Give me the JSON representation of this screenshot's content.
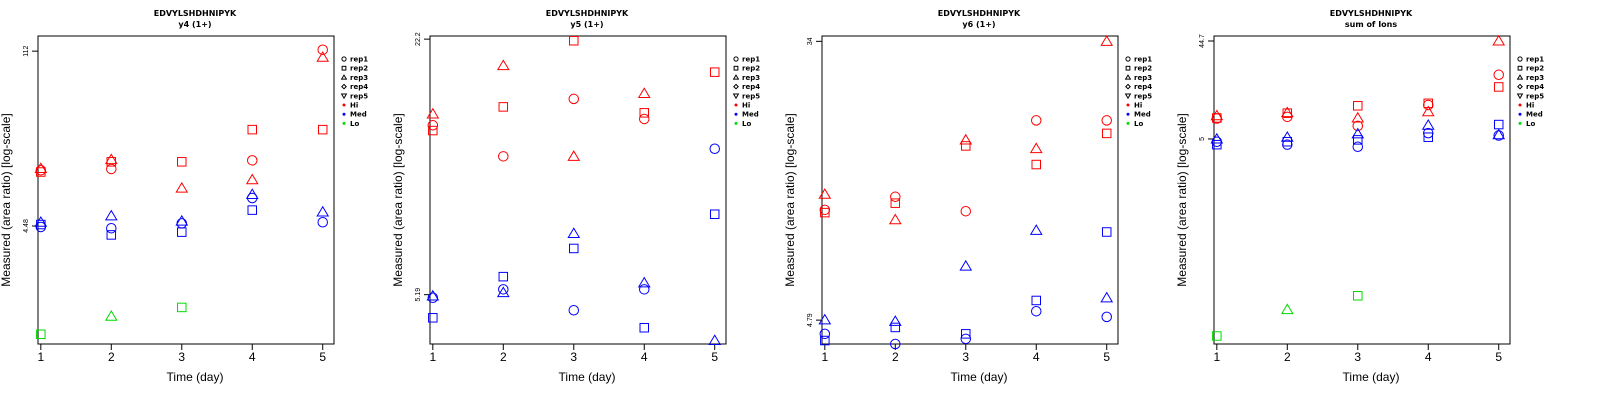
{
  "colors": {
    "Hi": "#ff0000",
    "Med": "#0000ff",
    "Lo": "#00dd00"
  },
  "legend": {
    "shapes": [
      {
        "label": "rep1",
        "shape": "circle"
      },
      {
        "label": "rep2",
        "shape": "square"
      },
      {
        "label": "rep3",
        "shape": "triangle"
      },
      {
        "label": "rep4",
        "shape": "diamond"
      },
      {
        "label": "rep5",
        "shape": "triangle-down"
      }
    ],
    "levels": [
      {
        "label": "Hi",
        "color": "#ff0000"
      },
      {
        "label": "Med",
        "color": "#0000ff"
      },
      {
        "label": "Lo",
        "color": "#00dd00"
      }
    ]
  },
  "chart_data": [
    {
      "type": "scatter",
      "title": "EDVYLSHDHNIPYK",
      "subtitle": "y4 (1+)",
      "xlabel": "Time (day)",
      "ylabel": "Measured (area ratio) [log-scale]",
      "y_scale": "log",
      "x_ticks": [
        1,
        2,
        3,
        4,
        5
      ],
      "xlim": [
        0.96,
        5.16
      ],
      "ylim": [
        0.51,
        148
      ],
      "y_ticks": [
        4.48,
        112
      ],
      "y_tick_labels": [
        "4.48",
        "112"
      ],
      "points": [
        {
          "series": "Hi",
          "rep": "rep1",
          "x": 1,
          "y": 12.5
        },
        {
          "series": "Hi",
          "rep": "rep2",
          "x": 1,
          "y": 12.1
        },
        {
          "series": "Hi",
          "rep": "rep3",
          "x": 1,
          "y": 12.9
        },
        {
          "series": "Hi",
          "rep": "rep1",
          "x": 2,
          "y": 12.8
        },
        {
          "series": "Hi",
          "rep": "rep2",
          "x": 2,
          "y": 14.6
        },
        {
          "series": "Hi",
          "rep": "rep3",
          "x": 2,
          "y": 15.2
        },
        {
          "series": "Hi",
          "rep": "rep2",
          "x": 3,
          "y": 14.6
        },
        {
          "series": "Hi",
          "rep": "rep3",
          "x": 3,
          "y": 9.0
        },
        {
          "series": "Hi",
          "rep": "rep1",
          "x": 4,
          "y": 15.0
        },
        {
          "series": "Hi",
          "rep": "rep2",
          "x": 4,
          "y": 26.4
        },
        {
          "series": "Hi",
          "rep": "rep3",
          "x": 4,
          "y": 10.5
        },
        {
          "series": "Hi",
          "rep": "rep1",
          "x": 5,
          "y": 115
        },
        {
          "series": "Hi",
          "rep": "rep2",
          "x": 5,
          "y": 26.4
        },
        {
          "series": "Hi",
          "rep": "rep3",
          "x": 5,
          "y": 100
        },
        {
          "series": "Med",
          "rep": "rep1",
          "x": 1,
          "y": 4.4
        },
        {
          "series": "Med",
          "rep": "rep2",
          "x": 1,
          "y": 4.6
        },
        {
          "series": "Med",
          "rep": "rep3",
          "x": 1,
          "y": 4.8
        },
        {
          "series": "Med",
          "rep": "rep1",
          "x": 2,
          "y": 4.3
        },
        {
          "series": "Med",
          "rep": "rep2",
          "x": 2,
          "y": 3.8
        },
        {
          "series": "Med",
          "rep": "rep3",
          "x": 2,
          "y": 5.4
        },
        {
          "series": "Med",
          "rep": "rep1",
          "x": 3,
          "y": 4.7
        },
        {
          "series": "Med",
          "rep": "rep2",
          "x": 3,
          "y": 4.0
        },
        {
          "series": "Med",
          "rep": "rep3",
          "x": 3,
          "y": 4.9
        },
        {
          "series": "Med",
          "rep": "rep1",
          "x": 4,
          "y": 7.5
        },
        {
          "series": "Med",
          "rep": "rep2",
          "x": 4,
          "y": 6.0
        },
        {
          "series": "Med",
          "rep": "rep3",
          "x": 4,
          "y": 8.0
        },
        {
          "series": "Med",
          "rep": "rep1",
          "x": 5,
          "y": 4.8
        },
        {
          "series": "Med",
          "rep": "rep3",
          "x": 5,
          "y": 5.8
        },
        {
          "series": "Lo",
          "rep": "rep2",
          "x": 1,
          "y": 0.61
        },
        {
          "series": "Lo",
          "rep": "rep3",
          "x": 2,
          "y": 0.85
        },
        {
          "series": "Lo",
          "rep": "rep2",
          "x": 3,
          "y": 1.0
        }
      ]
    },
    {
      "type": "scatter",
      "title": "EDVYLSHDHNIPYK",
      "subtitle": "y5 (1+)",
      "xlabel": "Time (day)",
      "ylabel": "Measured (area ratio) [log-scale]",
      "y_scale": "log",
      "x_ticks": [
        1,
        2,
        3,
        4,
        5
      ],
      "xlim": [
        0.96,
        5.16
      ],
      "ylim": [
        3.92,
        22.6
      ],
      "y_ticks": [
        5.19,
        22.2
      ],
      "y_tick_labels": [
        "5.19",
        "22.2"
      ],
      "points": [
        {
          "series": "Hi",
          "rep": "rep1",
          "x": 1,
          "y": 13.6
        },
        {
          "series": "Hi",
          "rep": "rep2",
          "x": 1,
          "y": 13.2
        },
        {
          "series": "Hi",
          "rep": "rep3",
          "x": 1,
          "y": 14.5
        },
        {
          "series": "Hi",
          "rep": "rep1",
          "x": 2,
          "y": 11.4
        },
        {
          "series": "Hi",
          "rep": "rep2",
          "x": 2,
          "y": 15.1
        },
        {
          "series": "Hi",
          "rep": "rep3",
          "x": 2,
          "y": 19.1
        },
        {
          "series": "Hi",
          "rep": "rep1",
          "x": 3,
          "y": 15.8
        },
        {
          "series": "Hi",
          "rep": "rep2",
          "x": 3,
          "y": 22.0
        },
        {
          "series": "Hi",
          "rep": "rep3",
          "x": 3,
          "y": 11.4
        },
        {
          "series": "Hi",
          "rep": "rep1",
          "x": 4,
          "y": 14.1
        },
        {
          "series": "Hi",
          "rep": "rep2",
          "x": 4,
          "y": 14.6
        },
        {
          "series": "Hi",
          "rep": "rep3",
          "x": 4,
          "y": 16.3
        },
        {
          "series": "Hi",
          "rep": "rep2",
          "x": 5,
          "y": 18.4
        },
        {
          "series": "Med",
          "rep": "rep1",
          "x": 1,
          "y": 5.1
        },
        {
          "series": "Med",
          "rep": "rep2",
          "x": 1,
          "y": 4.55
        },
        {
          "series": "Med",
          "rep": "rep3",
          "x": 1,
          "y": 5.15
        },
        {
          "series": "Med",
          "rep": "rep1",
          "x": 2,
          "y": 5.35
        },
        {
          "series": "Med",
          "rep": "rep2",
          "x": 2,
          "y": 5.75
        },
        {
          "series": "Med",
          "rep": "rep3",
          "x": 2,
          "y": 5.25
        },
        {
          "series": "Med",
          "rep": "rep1",
          "x": 3,
          "y": 4.75
        },
        {
          "series": "Med",
          "rep": "rep2",
          "x": 3,
          "y": 6.75
        },
        {
          "series": "Med",
          "rep": "rep3",
          "x": 3,
          "y": 7.35
        },
        {
          "series": "Med",
          "rep": "rep1",
          "x": 4,
          "y": 5.35
        },
        {
          "series": "Med",
          "rep": "rep2",
          "x": 4,
          "y": 4.3
        },
        {
          "series": "Med",
          "rep": "rep3",
          "x": 4,
          "y": 5.55
        },
        {
          "series": "Med",
          "rep": "rep1",
          "x": 5,
          "y": 11.9
        },
        {
          "series": "Med",
          "rep": "rep2",
          "x": 5,
          "y": 8.2
        },
        {
          "series": "Med",
          "rep": "rep3",
          "x": 5,
          "y": 4.0
        }
      ]
    },
    {
      "type": "scatter",
      "title": "EDVYLSHDHNIPYK",
      "subtitle": "y6 (1+)",
      "xlabel": "Time (day)",
      "ylabel": "Measured (area ratio) [log-scale]",
      "y_scale": "log",
      "x_ticks": [
        1,
        2,
        3,
        4,
        5
      ],
      "xlim": [
        0.96,
        5.16
      ],
      "ylim": [
        4.05,
        35.3
      ],
      "y_ticks": [
        4.79,
        34
      ],
      "y_tick_labels": [
        "4.79",
        "34"
      ],
      "points": [
        {
          "series": "Hi",
          "rep": "rep1",
          "x": 1,
          "y": 10.4
        },
        {
          "series": "Hi",
          "rep": "rep2",
          "x": 1,
          "y": 10.2
        },
        {
          "series": "Hi",
          "rep": "rep3",
          "x": 1,
          "y": 11.6
        },
        {
          "series": "Hi",
          "rep": "rep1",
          "x": 2,
          "y": 11.4
        },
        {
          "series": "Hi",
          "rep": "rep2",
          "x": 2,
          "y": 10.9
        },
        {
          "series": "Hi",
          "rep": "rep3",
          "x": 2,
          "y": 9.7
        },
        {
          "series": "Hi",
          "rep": "rep1",
          "x": 3,
          "y": 10.3
        },
        {
          "series": "Hi",
          "rep": "rep2",
          "x": 3,
          "y": 16.3
        },
        {
          "series": "Hi",
          "rep": "rep3",
          "x": 3,
          "y": 17.0
        },
        {
          "series": "Hi",
          "rep": "rep1",
          "x": 4,
          "y": 19.5
        },
        {
          "series": "Hi",
          "rep": "rep2",
          "x": 4,
          "y": 14.3
        },
        {
          "series": "Hi",
          "rep": "rep3",
          "x": 4,
          "y": 16.0
        },
        {
          "series": "Hi",
          "rep": "rep1",
          "x": 5,
          "y": 19.5
        },
        {
          "series": "Hi",
          "rep": "rep2",
          "x": 5,
          "y": 17.8
        },
        {
          "series": "Hi",
          "rep": "rep3",
          "x": 5,
          "y": 34.0
        },
        {
          "series": "Med",
          "rep": "rep1",
          "x": 1,
          "y": 4.35
        },
        {
          "series": "Med",
          "rep": "rep2",
          "x": 1,
          "y": 4.15
        },
        {
          "series": "Med",
          "rep": "rep3",
          "x": 1,
          "y": 4.8
        },
        {
          "series": "Med",
          "rep": "rep1",
          "x": 2,
          "y": 4.05
        },
        {
          "series": "Med",
          "rep": "rep2",
          "x": 2,
          "y": 4.55
        },
        {
          "series": "Med",
          "rep": "rep3",
          "x": 2,
          "y": 4.75
        },
        {
          "series": "Med",
          "rep": "rep1",
          "x": 3,
          "y": 4.2
        },
        {
          "series": "Med",
          "rep": "rep2",
          "x": 3,
          "y": 4.35
        },
        {
          "series": "Med",
          "rep": "rep3",
          "x": 3,
          "y": 7.0
        },
        {
          "series": "Med",
          "rep": "rep1",
          "x": 4,
          "y": 5.1
        },
        {
          "series": "Med",
          "rep": "rep2",
          "x": 4,
          "y": 5.5
        },
        {
          "series": "Med",
          "rep": "rep3",
          "x": 4,
          "y": 9.0
        },
        {
          "series": "Med",
          "rep": "rep1",
          "x": 5,
          "y": 4.9
        },
        {
          "series": "Med",
          "rep": "rep2",
          "x": 5,
          "y": 8.9
        },
        {
          "series": "Med",
          "rep": "rep3",
          "x": 5,
          "y": 5.6
        }
      ]
    },
    {
      "type": "scatter",
      "title": "EDVYLSHDHNIPYK",
      "subtitle": "sum of Ions",
      "xlabel": "Time (day)",
      "ylabel": "Measured (area ratio) [log-scale]",
      "y_scale": "log",
      "x_ticks": [
        1,
        2,
        3,
        4,
        5
      ],
      "xlim": [
        0.96,
        5.16
      ],
      "ylim": [
        0.051,
        50
      ],
      "y_ticks": [
        5,
        44.7
      ],
      "y_tick_labels": [
        "5",
        "44.7"
      ],
      "points": [
        {
          "series": "Hi",
          "rep": "rep1",
          "x": 1,
          "y": 7.9
        },
        {
          "series": "Hi",
          "rep": "rep2",
          "x": 1,
          "y": 8.0
        },
        {
          "series": "Hi",
          "rep": "rep3",
          "x": 1,
          "y": 8.4
        },
        {
          "series": "Hi",
          "rep": "rep1",
          "x": 2,
          "y": 8.2
        },
        {
          "series": "Hi",
          "rep": "rep2",
          "x": 2,
          "y": 8.9
        },
        {
          "series": "Hi",
          "rep": "rep3",
          "x": 2,
          "y": 9.0
        },
        {
          "series": "Hi",
          "rep": "rep1",
          "x": 3,
          "y": 6.7
        },
        {
          "series": "Hi",
          "rep": "rep2",
          "x": 3,
          "y": 10.5
        },
        {
          "series": "Hi",
          "rep": "rep3",
          "x": 3,
          "y": 8.0
        },
        {
          "series": "Hi",
          "rep": "rep1",
          "x": 4,
          "y": 10.7
        },
        {
          "series": "Hi",
          "rep": "rep2",
          "x": 4,
          "y": 11.1
        },
        {
          "series": "Hi",
          "rep": "rep3",
          "x": 4,
          "y": 9.2
        },
        {
          "series": "Hi",
          "rep": "rep1",
          "x": 5,
          "y": 21.0
        },
        {
          "series": "Hi",
          "rep": "rep2",
          "x": 5,
          "y": 16.0
        },
        {
          "series": "Hi",
          "rep": "rep3",
          "x": 5,
          "y": 44.7
        },
        {
          "series": "Med",
          "rep": "rep1",
          "x": 1,
          "y": 4.7
        },
        {
          "series": "Med",
          "rep": "rep2",
          "x": 1,
          "y": 4.4
        },
        {
          "series": "Med",
          "rep": "rep3",
          "x": 1,
          "y": 5.0
        },
        {
          "series": "Med",
          "rep": "rep1",
          "x": 2,
          "y": 4.4
        },
        {
          "series": "Med",
          "rep": "rep2",
          "x": 2,
          "y": 4.7
        },
        {
          "series": "Med",
          "rep": "rep3",
          "x": 2,
          "y": 5.2
        },
        {
          "series": "Med",
          "rep": "rep1",
          "x": 3,
          "y": 4.2
        },
        {
          "series": "Med",
          "rep": "rep2",
          "x": 3,
          "y": 4.9
        },
        {
          "series": "Med",
          "rep": "rep3",
          "x": 3,
          "y": 5.6
        },
        {
          "series": "Med",
          "rep": "rep1",
          "x": 4,
          "y": 5.7
        },
        {
          "series": "Med",
          "rep": "rep2",
          "x": 4,
          "y": 5.2
        },
        {
          "series": "Med",
          "rep": "rep3",
          "x": 4,
          "y": 6.8
        },
        {
          "series": "Med",
          "rep": "rep1",
          "x": 5,
          "y": 5.4
        },
        {
          "series": "Med",
          "rep": "rep2",
          "x": 5,
          "y": 6.9
        },
        {
          "series": "Med",
          "rep": "rep3",
          "x": 5,
          "y": 5.5
        },
        {
          "series": "Lo",
          "rep": "rep2",
          "x": 1,
          "y": 0.061
        },
        {
          "series": "Lo",
          "rep": "rep3",
          "x": 2,
          "y": 0.11
        },
        {
          "series": "Lo",
          "rep": "rep2",
          "x": 3,
          "y": 0.15
        }
      ]
    }
  ]
}
